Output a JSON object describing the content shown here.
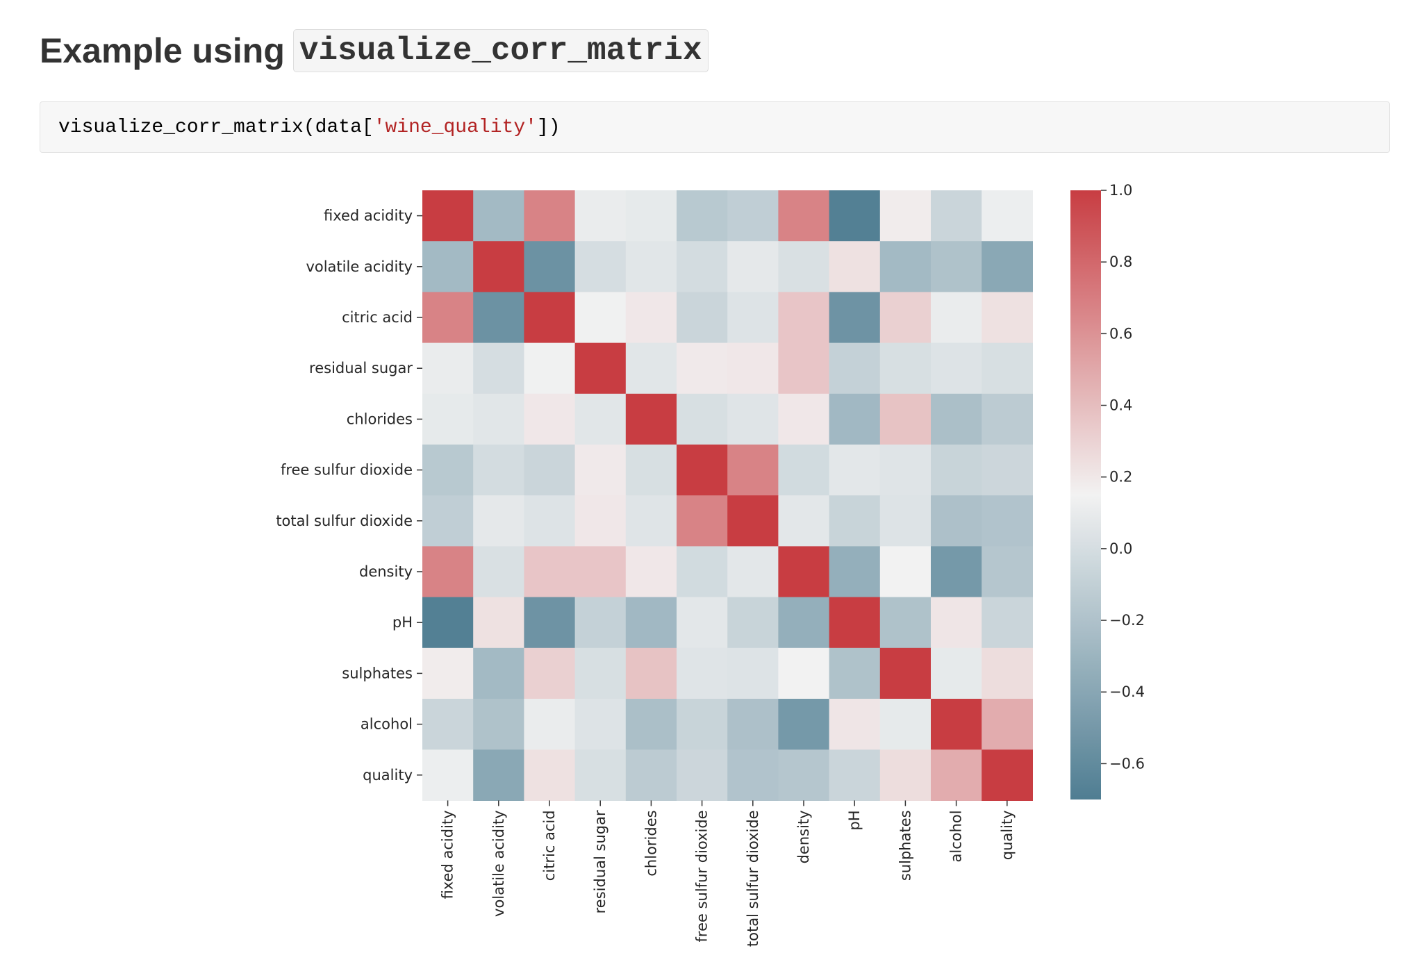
{
  "heading": {
    "prefix": "Example using",
    "code": "visualize_corr_matrix"
  },
  "code_cell": {
    "before": "visualize_corr_matrix(data[",
    "string": "'wine_quality'",
    "after": "])"
  },
  "chart_data": {
    "type": "heatmap",
    "title": "",
    "xlabel": "",
    "ylabel": "",
    "labels": [
      "fixed acidity",
      "volatile acidity",
      "citric acid",
      "residual sugar",
      "chlorides",
      "free sulfur dioxide",
      "total sulfur dioxide",
      "density",
      "pH",
      "sulphates",
      "alcohol",
      "quality"
    ],
    "matrix": [
      [
        1.0,
        -0.26,
        0.67,
        0.11,
        0.09,
        -0.15,
        -0.11,
        0.67,
        -0.68,
        0.18,
        -0.06,
        0.12
      ],
      [
        -0.26,
        1.0,
        -0.55,
        0.0,
        0.06,
        -0.01,
        0.08,
        0.02,
        0.23,
        -0.26,
        -0.2,
        -0.39
      ],
      [
        0.67,
        -0.55,
        1.0,
        0.14,
        0.2,
        -0.06,
        0.04,
        0.36,
        -0.54,
        0.31,
        0.11,
        0.23
      ],
      [
        0.11,
        0.0,
        0.14,
        1.0,
        0.06,
        0.19,
        0.2,
        0.36,
        -0.09,
        0.01,
        0.04,
        0.01
      ],
      [
        0.09,
        0.06,
        0.2,
        0.06,
        1.0,
        0.01,
        0.05,
        0.2,
        -0.27,
        0.37,
        -0.22,
        -0.13
      ],
      [
        -0.15,
        -0.01,
        -0.06,
        0.19,
        0.01,
        1.0,
        0.67,
        -0.02,
        0.07,
        0.05,
        -0.07,
        -0.05
      ],
      [
        -0.11,
        0.08,
        0.04,
        0.2,
        0.05,
        0.67,
        1.0,
        0.07,
        -0.07,
        0.04,
        -0.21,
        -0.19
      ],
      [
        0.67,
        0.02,
        0.36,
        0.36,
        0.2,
        -0.02,
        0.07,
        1.0,
        -0.34,
        0.15,
        -0.5,
        -0.17
      ],
      [
        -0.68,
        0.23,
        -0.54,
        -0.09,
        -0.27,
        0.07,
        -0.07,
        -0.34,
        1.0,
        -0.2,
        0.21,
        -0.06
      ],
      [
        0.18,
        -0.26,
        0.31,
        0.01,
        0.37,
        0.05,
        0.04,
        0.15,
        -0.2,
        1.0,
        0.09,
        0.25
      ],
      [
        -0.06,
        -0.2,
        0.11,
        0.04,
        -0.22,
        -0.07,
        -0.21,
        -0.5,
        0.21,
        0.09,
        1.0,
        0.48
      ],
      [
        0.12,
        -0.39,
        0.23,
        0.01,
        -0.13,
        -0.05,
        -0.19,
        -0.17,
        -0.06,
        0.25,
        0.48,
        1.0
      ]
    ],
    "vmin": -0.7,
    "vmax": 1.0,
    "colorbar_ticks": [
      "1.0",
      "0.8",
      "0.6",
      "0.4",
      "0.2",
      "0.0",
      "−0.2",
      "−0.4",
      "−0.6"
    ],
    "colorbar_tick_values": [
      1.0,
      0.8,
      0.6,
      0.4,
      0.2,
      0.0,
      -0.2,
      -0.4,
      -0.6
    ],
    "colormap": {
      "low": "#4f7d92",
      "mid": "#f2f2f2",
      "high": "#c83d42",
      "mid_value": 0.15
    }
  }
}
